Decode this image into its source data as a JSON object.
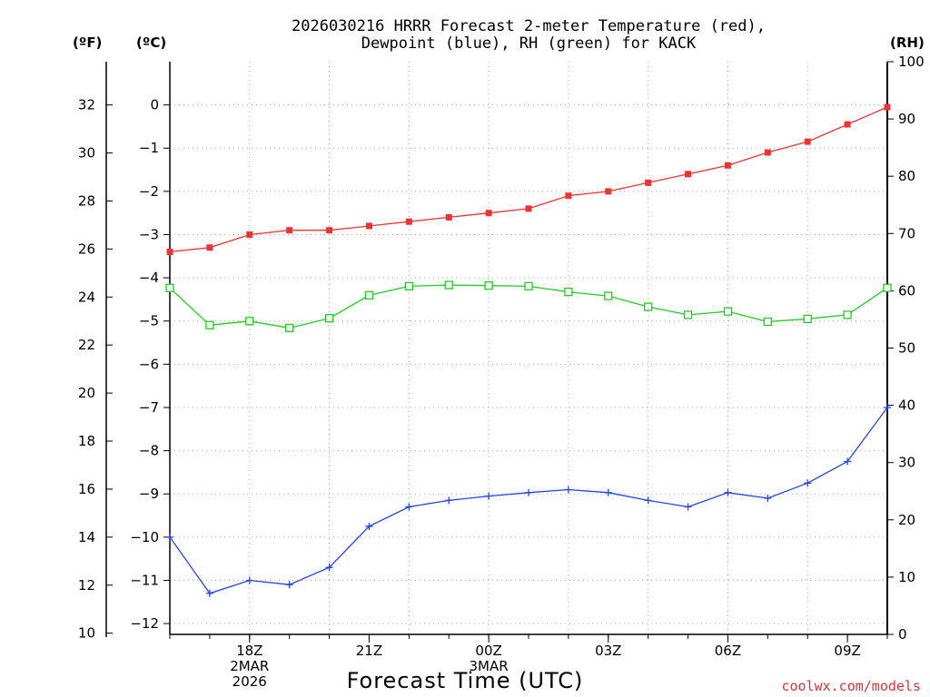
{
  "title": {
    "line1": "2026030216 HRRR Forecast 2-meter Temperature (red),",
    "line2": "Dewpoint (blue), RH (green) for KACK"
  },
  "units": {
    "fahrenheit": "(ºF)",
    "celsius": "(ºC)",
    "rh": "(RH)"
  },
  "credit": "coolwx.com/models",
  "colors": {
    "temperature": "#ee3333",
    "dewpoint": "#2244ee",
    "rh": "#22cc22",
    "credit": "#dd3333",
    "grid": "#aaaaaa"
  },
  "chart_data": {
    "type": "line",
    "xlabel": "Forecast Time (UTC)",
    "x_hours": [
      0,
      1,
      2,
      3,
      4,
      5,
      6,
      7,
      8,
      9,
      10,
      11,
      12,
      13,
      14,
      15,
      16,
      17,
      18
    ],
    "x_range": [
      0,
      18
    ],
    "x_ticks": [
      {
        "hour": 2,
        "lines": [
          "18Z",
          "2MAR",
          "2026"
        ]
      },
      {
        "hour": 5,
        "lines": [
          "21Z"
        ]
      },
      {
        "hour": 8,
        "lines": [
          "00Z",
          "3MAR"
        ]
      },
      {
        "hour": 11,
        "lines": [
          "03Z"
        ]
      },
      {
        "hour": 14,
        "lines": [
          "06Z"
        ]
      },
      {
        "hour": 17,
        "lines": [
          "09Z"
        ]
      }
    ],
    "celsius_axis": {
      "range": [
        -12.25,
        1.0
      ],
      "ticks": [
        0,
        -1,
        -2,
        -3,
        -4,
        -5,
        -6,
        -7,
        -8,
        -9,
        -10,
        -11,
        -12
      ]
    },
    "fahrenheit_axis": {
      "range": [
        9.95,
        33.8
      ],
      "ticks": [
        32,
        30,
        28,
        26,
        24,
        22,
        20,
        18,
        16,
        14,
        12,
        10
      ]
    },
    "rh_axis": {
      "range": [
        0,
        100
      ],
      "ticks": [
        100,
        90,
        80,
        70,
        60,
        50,
        40,
        30,
        20,
        10,
        0
      ]
    },
    "series": [
      {
        "name": "Temperature",
        "axis": "celsius",
        "marker": "filled-square",
        "values": [
          -3.4,
          -3.3,
          -3.0,
          -2.9,
          -2.9,
          -2.8,
          -2.7,
          -2.6,
          -2.5,
          -2.4,
          -2.1,
          -2.0,
          -1.8,
          -1.6,
          -1.4,
          -1.1,
          -0.85,
          -0.45,
          -0.05
        ]
      },
      {
        "name": "Dewpoint",
        "axis": "celsius",
        "marker": "plus",
        "values": [
          -10.0,
          -11.3,
          -11.0,
          -11.1,
          -10.7,
          -9.75,
          -9.3,
          -9.15,
          -9.05,
          -8.97,
          -8.9,
          -8.97,
          -9.15,
          -9.3,
          -8.97,
          -9.1,
          -8.75,
          -8.25,
          -7.0
        ]
      },
      {
        "name": "RH",
        "axis": "rh",
        "marker": "open-square",
        "values": [
          60.5,
          54.0,
          54.7,
          53.5,
          55.2,
          59.2,
          60.8,
          61.0,
          60.9,
          60.8,
          59.8,
          59.1,
          57.2,
          55.8,
          56.4,
          54.6,
          55.1,
          55.8,
          60.5
        ]
      }
    ]
  }
}
